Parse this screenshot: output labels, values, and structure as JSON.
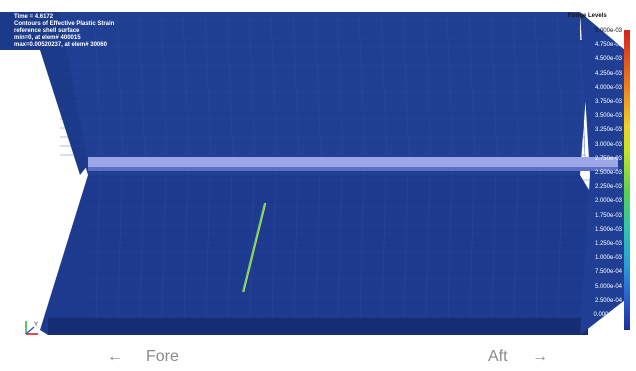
{
  "header": {
    "time_label": "Time =   4.6172",
    "contour_label": "Contours of Effective Plastic Strain",
    "reference_label": "reference shell surface",
    "min_label": "min=0, at elem# 400015",
    "max_label": "max=0.00520237, at elem# 30060"
  },
  "legend": {
    "title": "Fringe Levels",
    "values": [
      "5.000e-03",
      "4.750e-03",
      "4.500e-03",
      "4.250e-03",
      "4.000e-03",
      "3.750e-03",
      "3.500e-03",
      "3.250e-03",
      "3.000e-03",
      "2.750e-03",
      "2.500e-03",
      "2.250e-03",
      "2.000e-03",
      "1.750e-03",
      "1.500e-03",
      "1.250e-03",
      "1.000e-03",
      "7.500e-04",
      "5.000e-04",
      "2.500e-04",
      "0.000e+00"
    ]
  },
  "triad": {
    "axis_label": "Y"
  },
  "direction": {
    "fore_arrow": "←",
    "fore_label": "Fore",
    "aft_label": "Aft",
    "aft_arrow": "→"
  },
  "colors": {
    "hull": "#1f3f93",
    "hull_dark": "#152e73",
    "weld_band": "#9aa6e6",
    "crack": "#6fd36a"
  }
}
